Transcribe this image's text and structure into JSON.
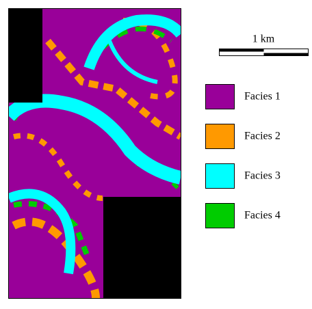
{
  "scale_bar": {
    "label": "1 km"
  },
  "legend": {
    "items": [
      {
        "label": "Facies 1",
        "color": "#990099"
      },
      {
        "label": "Facies 2",
        "color": "#ff9900"
      },
      {
        "label": "Facies 3",
        "color": "#00ffff"
      },
      {
        "label": "Facies 4",
        "color": "#00cc00"
      }
    ]
  }
}
